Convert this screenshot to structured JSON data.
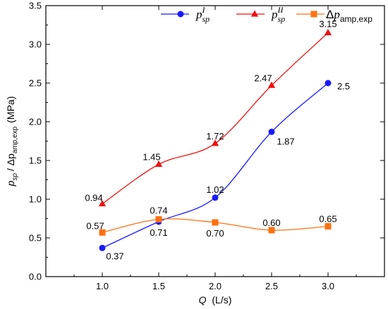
{
  "chart_data": {
    "type": "line",
    "title": "",
    "x": [
      1.0,
      1.5,
      2.0,
      2.5,
      3.0
    ],
    "xlim": [
      0.5,
      3.5
    ],
    "ylim": [
      0.0,
      3.5
    ],
    "xticks": [
      "1.0",
      "1.5",
      "2.0",
      "2.5",
      "3.0"
    ],
    "yticks": [
      "0.0",
      "0.5",
      "1.0",
      "1.5",
      "2.0",
      "2.5",
      "3.0",
      "3.5"
    ],
    "xlabel": {
      "main": "Q",
      "unit": "(L/s)"
    },
    "ylabel": {
      "part1": "p",
      "part1_sub": "sp",
      "part2": "/ Δp",
      "part2_sub": "amp,exp",
      "unit": "(MPa)"
    },
    "grid": false,
    "legend_position": "top",
    "series": [
      {
        "name": "p_sp^I",
        "legend": {
          "base": "p",
          "sub": "sp",
          "sup": "I"
        },
        "color": "#1a1aff",
        "marker": "circle",
        "values": [
          0.37,
          0.71,
          1.02,
          1.87,
          2.5
        ],
        "labels": [
          "0.37",
          "0.71",
          "1.02",
          "1.87",
          "2.5"
        ]
      },
      {
        "name": "p_sp^II",
        "legend": {
          "base": "p",
          "sub": "sp",
          "sup": "II"
        },
        "color": "#ee1111",
        "marker": "triangle",
        "values": [
          0.94,
          1.45,
          1.72,
          2.47,
          3.15
        ],
        "labels": [
          "0.94",
          "1.45",
          "1.72",
          "2.47",
          "3.15"
        ]
      },
      {
        "name": "Δp_amp,exp",
        "legend": {
          "delta": "Δ",
          "base": "p",
          "sub": "amp,exp",
          "sup": ""
        },
        "color": "#ff7010",
        "marker": "square",
        "values": [
          0.57,
          0.74,
          0.7,
          0.6,
          0.65
        ],
        "labels": [
          "0.57",
          "0.74",
          "0.70",
          "0.60",
          "0.65"
        ]
      }
    ]
  }
}
